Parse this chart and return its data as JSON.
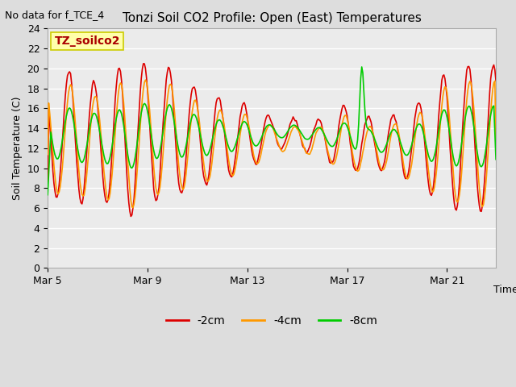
{
  "title": "Tonzi Soil CO2 Profile: Open (East) Temperatures",
  "no_data_label": "No data for f_TCE_4",
  "ylabel": "Soil Temperature (C)",
  "xlabel": "Time",
  "ylim": [
    0,
    24
  ],
  "yticks": [
    0,
    2,
    4,
    6,
    8,
    10,
    12,
    14,
    16,
    18,
    20,
    22,
    24
  ],
  "xtick_labels": [
    "Mar 5",
    "Mar 9",
    "Mar 13",
    "Mar 17",
    "Mar 21"
  ],
  "legend_entries": [
    "-2cm",
    "-4cm",
    "-8cm"
  ],
  "line_colors": [
    "#dd0000",
    "#ff9900",
    "#00cc00"
  ],
  "line_width": 1.2,
  "bg_color": "#dddddd",
  "inner_bg_color": "#ebebeb",
  "annotation_box_color": "#ffffaa",
  "annotation_text": "TZ_soilco2",
  "annotation_text_color": "#aa0000",
  "annotation_border_color": "#cccc00"
}
